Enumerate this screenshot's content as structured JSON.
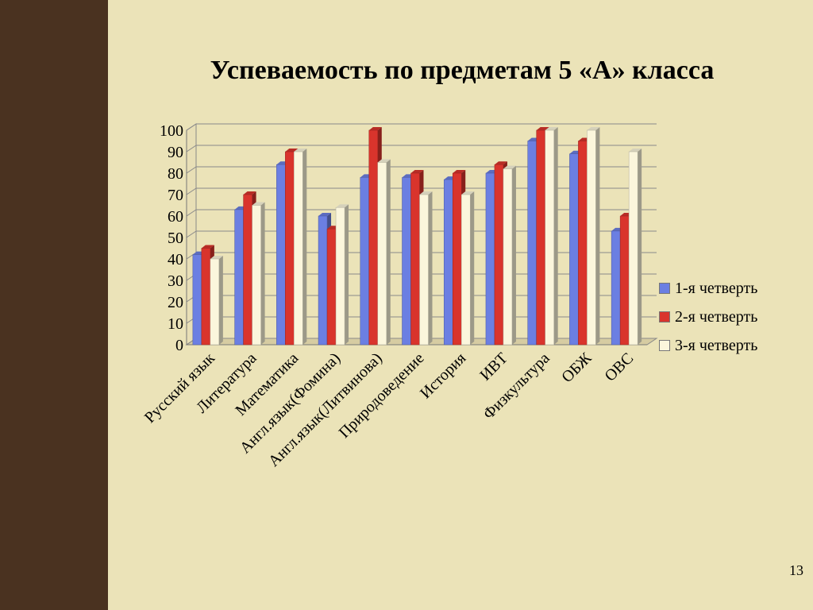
{
  "slide": {
    "title": "Успеваемость по предметам 5 «А» класса",
    "page_number": "13"
  },
  "colors": {
    "background": "#ebe3b8",
    "series": [
      "#6b7fe2",
      "#d9342c",
      "#fbf6dc"
    ]
  },
  "chart_data": {
    "type": "bar",
    "title": "",
    "xlabel": "",
    "ylabel": "",
    "categories": [
      "Русский язык",
      "Литература",
      "Математика",
      "Англ.язык(Фомина)",
      "Англ.язык(Литвинова)",
      "Природоведение",
      "История",
      "ИВТ",
      "Физкультура",
      "ОБЖ",
      "ОВС"
    ],
    "series": [
      {
        "name": "1-я четверть",
        "values": [
          42,
          63,
          84,
          60,
          78,
          78,
          77,
          80,
          95,
          89,
          53
        ]
      },
      {
        "name": "2-я четверть",
        "values": [
          45,
          70,
          90,
          54,
          100,
          80,
          80,
          84,
          100,
          95,
          60
        ]
      },
      {
        "name": "3-я четверть",
        "values": [
          40,
          65,
          90,
          64,
          85,
          70,
          70,
          82,
          100,
          100,
          90
        ]
      }
    ],
    "yticks": [
      "0",
      "10",
      "20",
      "30",
      "40",
      "50",
      "60",
      "70",
      "80",
      "90",
      "100"
    ],
    "ylim": [
      0,
      100
    ],
    "grid": true,
    "legend": "right"
  }
}
